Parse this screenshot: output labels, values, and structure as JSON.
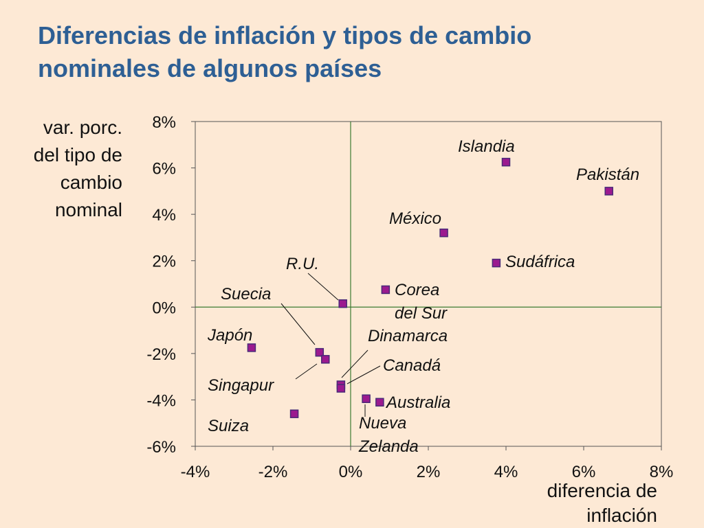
{
  "slide": {
    "title_lines": [
      "Diferencias de inflación y tipos de cambio",
      "nominales de algunos países"
    ]
  },
  "chart_data": {
    "type": "scatter",
    "title": "Diferencias de inflación y tipos de cambio nominales de algunos países",
    "xlabel": "diferencia de inflación",
    "ylabel": "var. porc. del tipo de cambio nominal",
    "xlabel_lines": [
      "diferencia de",
      "inflación"
    ],
    "ylabel_lines": [
      "var. porc.",
      "del tipo de",
      "cambio",
      "nominal"
    ],
    "xlim": [
      -4,
      8
    ],
    "ylim": [
      -6,
      8
    ],
    "x_ticks": [
      -4,
      -2,
      0,
      2,
      4,
      6,
      8
    ],
    "y_ticks": [
      -6,
      -4,
      -2,
      0,
      2,
      4,
      6,
      8
    ],
    "x_tick_labels": [
      "-4%",
      "-2%",
      "0%",
      "2%",
      "4%",
      "6%",
      "8%"
    ],
    "y_tick_labels": [
      "-6%",
      "-4%",
      "-2%",
      "0%",
      "2%",
      "4%",
      "6%",
      "8%"
    ],
    "grid": false,
    "marker_color": "#9b1a8f",
    "marker_border": "#4a2a78",
    "axis_line_color": "#3a7a30",
    "points": [
      {
        "label_lines": [
          "Islandia"
        ],
        "x": 4.0,
        "y": 6.25
      },
      {
        "label_lines": [
          "Pakistán"
        ],
        "x": 6.65,
        "y": 5.0
      },
      {
        "label_lines": [
          "México"
        ],
        "x": 2.4,
        "y": 3.2
      },
      {
        "label_lines": [
          "Sudáfrica"
        ],
        "x": 3.75,
        "y": 1.9
      },
      {
        "label_lines": [
          "Corea",
          "del Sur"
        ],
        "x": 0.9,
        "y": 0.75
      },
      {
        "label_lines": [
          "R.U."
        ],
        "x": -0.2,
        "y": 0.15
      },
      {
        "label_lines": [
          "Suecia"
        ],
        "x": -0.8,
        "y": -1.95
      },
      {
        "label_lines": [
          "Japón"
        ],
        "x": -2.55,
        "y": -1.75
      },
      {
        "label_lines": [
          "Singapur"
        ],
        "x": -0.65,
        "y": -2.25
      },
      {
        "label_lines": [
          "Dinamarca"
        ],
        "x": -0.25,
        "y": -3.35
      },
      {
        "label_lines": [
          "Canadá"
        ],
        "x": -0.25,
        "y": -3.5
      },
      {
        "label_lines": [
          "Australia"
        ],
        "x": 0.75,
        "y": -4.1
      },
      {
        "label_lines": [
          "Nueva",
          "Zelanda"
        ],
        "x": 0.4,
        "y": -3.95
      },
      {
        "label_lines": [
          "Suiza"
        ],
        "x": -1.45,
        "y": -4.6
      }
    ]
  }
}
